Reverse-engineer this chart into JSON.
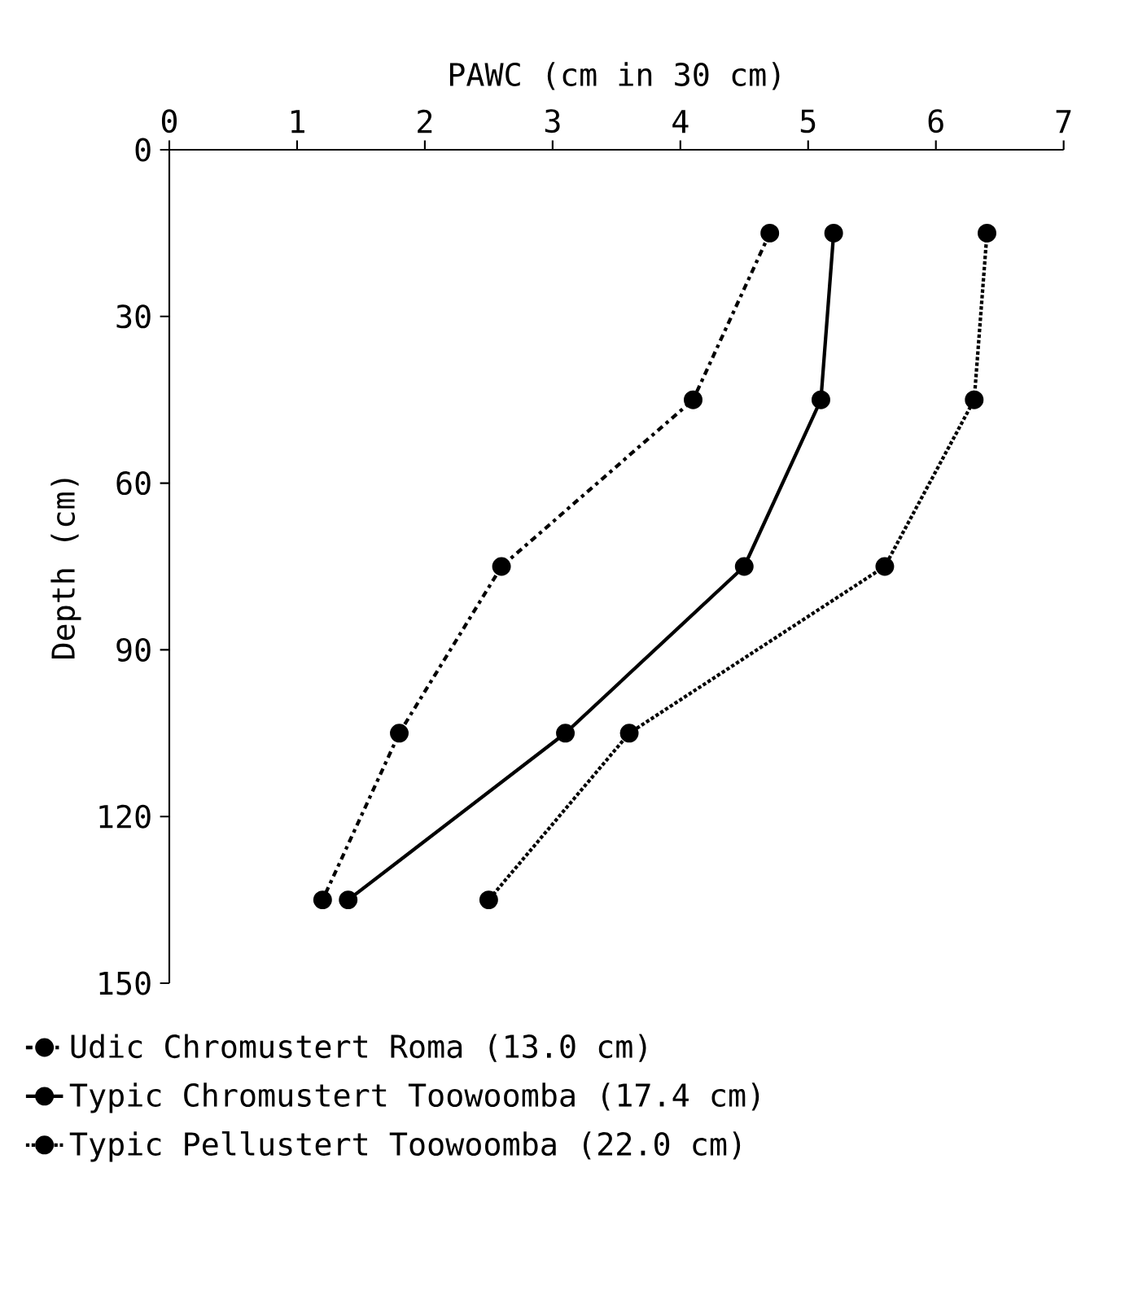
{
  "chart_data": {
    "type": "line",
    "xlabel": "PAWC (cm in 30 cm)",
    "ylabel": "Depth (cm)",
    "xlim": [
      0,
      7
    ],
    "xticks": [
      0,
      1,
      2,
      3,
      4,
      5,
      6,
      7
    ],
    "ylim": [
      150,
      0
    ],
    "yticks": [
      0,
      30,
      60,
      90,
      120,
      150
    ],
    "series": [
      {
        "name": "Udic Chromustert Roma (13.0 cm)",
        "color": "#000000",
        "line_style": "dashed",
        "x": [
          4.7,
          4.1,
          2.6,
          1.8,
          1.2
        ],
        "values": [
          15,
          45,
          75,
          105,
          135
        ]
      },
      {
        "name": "Typic Chromustert Toowoomba (17.4 cm)",
        "color": "#000000",
        "line_style": "solid",
        "x": [
          5.2,
          5.1,
          4.5,
          3.1,
          1.4
        ],
        "values": [
          15,
          45,
          75,
          105,
          135
        ]
      },
      {
        "name": "Typic Pellustert Toowoomba (22.0 cm)",
        "color": "#000000",
        "line_style": "dotted",
        "x": [
          6.4,
          6.3,
          5.6,
          3.6,
          2.5
        ],
        "values": [
          15,
          45,
          75,
          105,
          135
        ]
      }
    ],
    "marker": "circle",
    "legend": "bottom",
    "grid": false
  }
}
